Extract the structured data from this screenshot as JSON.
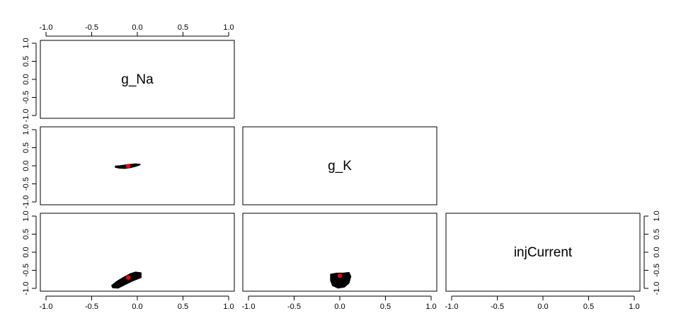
{
  "chart_data": {
    "type": "scatter",
    "layout": "pairs-lower-triangle",
    "variables": [
      "g_Na",
      "g_K",
      "injCurrent"
    ],
    "axis_range": [
      -1.0,
      1.0
    ],
    "ticks": [
      -1.0,
      -0.5,
      0.0,
      0.5,
      1.0
    ],
    "tick_labels": [
      "-1.0",
      "-0.5",
      "0.0",
      "0.5",
      "1.0"
    ],
    "grid": false,
    "colors": {
      "points": "#000000",
      "highlight": "#ff0000",
      "frame": "#000000"
    },
    "panels": [
      {
        "x_var": "g_Na",
        "y_var": "g_K",
        "cloud": [
          [
            -0.24,
            -0.04
          ],
          [
            -0.2,
            -0.06
          ],
          [
            -0.14,
            -0.07
          ],
          [
            -0.08,
            -0.05
          ],
          [
            -0.03,
            -0.02
          ],
          [
            0.02,
            0.02
          ],
          [
            0.03,
            0.04
          ],
          [
            -0.02,
            0.05
          ],
          [
            -0.07,
            0.04
          ],
          [
            -0.13,
            0.02
          ],
          [
            -0.19,
            0.0
          ],
          [
            -0.24,
            -0.01
          ]
        ],
        "highlight": [
          -0.1,
          -0.01
        ]
      },
      {
        "x_var": "g_Na",
        "y_var": "injCurrent",
        "cloud": [
          [
            -0.27,
            -0.98
          ],
          [
            -0.21,
            -0.99
          ],
          [
            -0.14,
            -0.9
          ],
          [
            -0.06,
            -0.8
          ],
          [
            0.01,
            -0.73
          ],
          [
            0.04,
            -0.7
          ],
          [
            0.04,
            -0.57
          ],
          [
            -0.02,
            -0.55
          ],
          [
            -0.08,
            -0.6
          ],
          [
            -0.16,
            -0.71
          ],
          [
            -0.23,
            -0.82
          ],
          [
            -0.28,
            -0.92
          ]
        ],
        "highlight": [
          -0.1,
          -0.7
        ]
      },
      {
        "x_var": "g_K",
        "y_var": "injCurrent",
        "cloud": [
          [
            -0.1,
            -0.61
          ],
          [
            -0.03,
            -0.58
          ],
          [
            0.04,
            -0.58
          ],
          [
            0.1,
            -0.56
          ],
          [
            0.12,
            -0.67
          ],
          [
            0.1,
            -0.85
          ],
          [
            0.05,
            -0.96
          ],
          [
            -0.02,
            -0.99
          ],
          [
            -0.08,
            -0.92
          ],
          [
            -0.1,
            -0.78
          ]
        ],
        "highlight": [
          0.0,
          -0.65
        ]
      }
    ]
  }
}
